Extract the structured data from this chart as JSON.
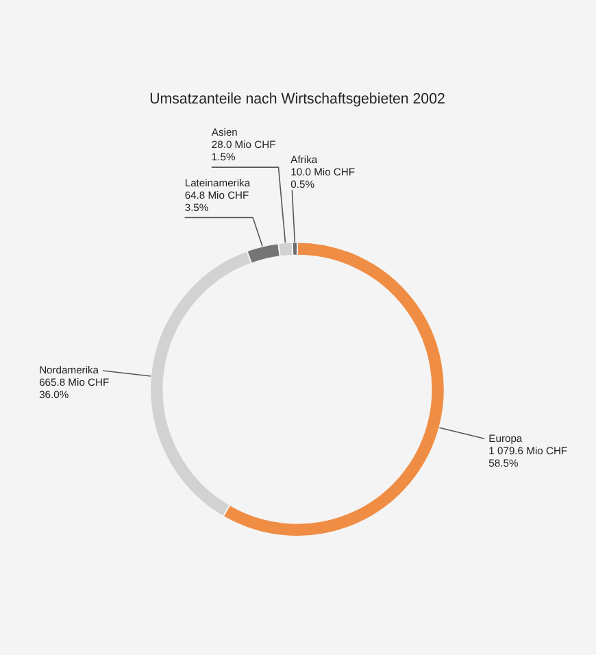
{
  "chart_data": {
    "type": "donut",
    "title": "Umsatzanteile nach Wirtschaftsgebieten 2002",
    "categories": [
      "Europa",
      "Nordamerika",
      "Lateinamerika",
      "Asien",
      "Afrika"
    ],
    "values": [
      1079.6,
      665.8,
      64.8,
      28.0,
      10.0
    ],
    "value_labels": [
      "1 079.6 Mio CHF\n58.5%",
      "665.8 Mio CHF\n36.0%",
      "64.8 Mio CHF\n3.5%",
      "28.0 Mio CHF\n1.5%",
      "10.0 Mio CHF\n0.5%"
    ],
    "colors": [
      "#f08d45",
      "#d2d2d2",
      "#757575",
      "#d2d2d2",
      "#6a6a6a"
    ],
    "legend": false
  }
}
